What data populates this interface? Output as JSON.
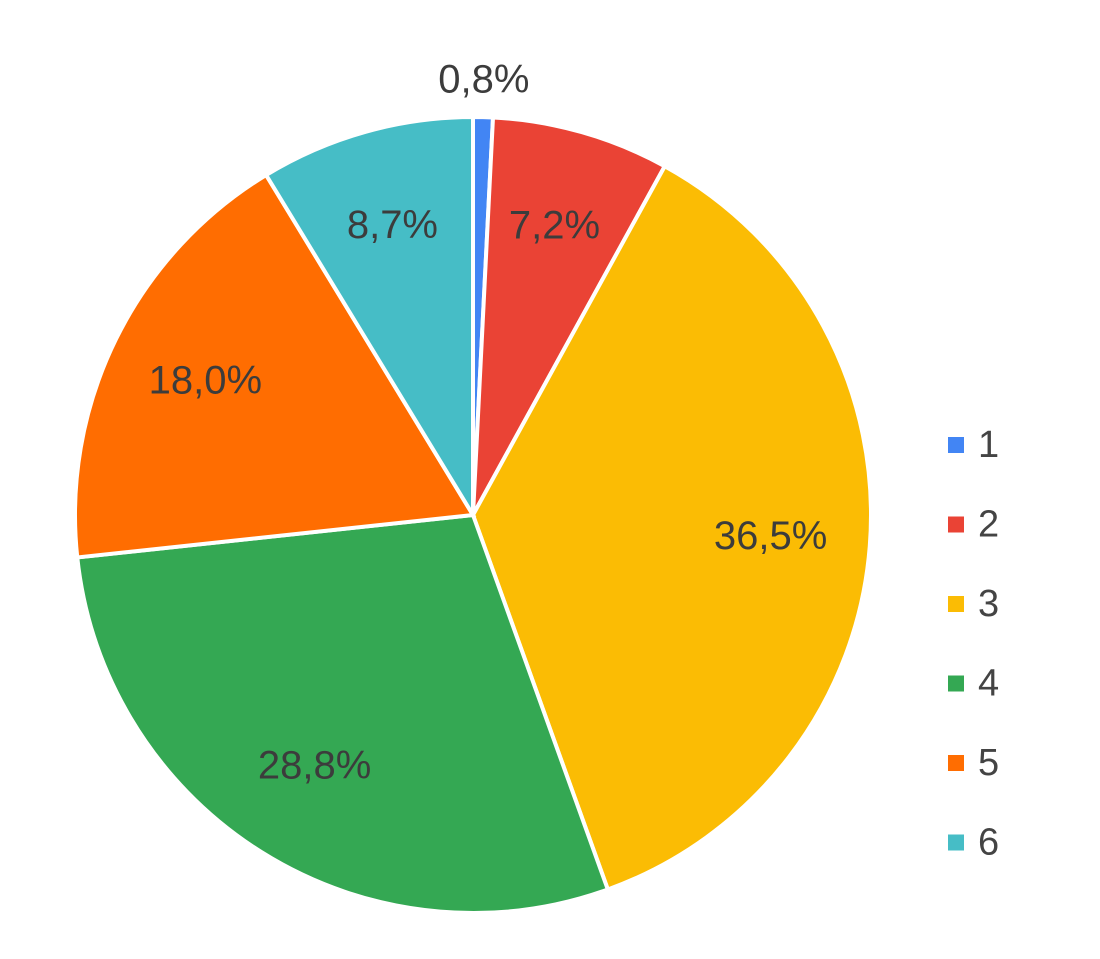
{
  "chart_data": {
    "type": "pie",
    "categories": [
      "1",
      "2",
      "3",
      "4",
      "5",
      "6"
    ],
    "values": [
      0.8,
      7.2,
      36.5,
      28.8,
      18.0,
      8.7
    ],
    "value_labels": [
      "0,8%",
      "7,2%",
      "36,5%",
      "28,8%",
      "18,0%",
      "8,7%"
    ],
    "colors": [
      "#4285f4",
      "#ea4335",
      "#fbbc04",
      "#34a853",
      "#ff6d01",
      "#46bdc6"
    ],
    "legend": "right"
  }
}
